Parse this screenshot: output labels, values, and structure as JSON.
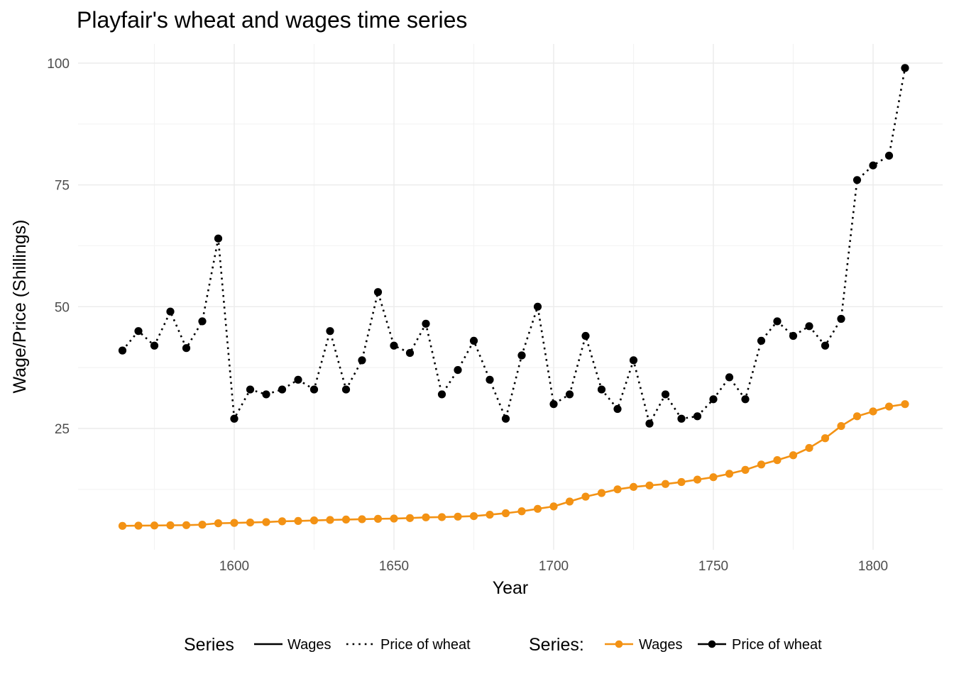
{
  "chart_data": {
    "type": "line",
    "title": "Playfair's wheat and wages time series",
    "xlabel": "Year",
    "ylabel": "Wage/Price (Shillings)",
    "xlim": [
      1565,
      1810
    ],
    "ylim": [
      0,
      100
    ],
    "x_ticks": [
      1600,
      1650,
      1700,
      1750,
      1800
    ],
    "y_ticks": [
      25,
      50,
      75,
      100
    ],
    "grid": true,
    "legend_position": "bottom",
    "x": [
      1565,
      1570,
      1575,
      1580,
      1585,
      1590,
      1595,
      1600,
      1605,
      1610,
      1615,
      1620,
      1625,
      1630,
      1635,
      1640,
      1645,
      1650,
      1655,
      1660,
      1665,
      1670,
      1675,
      1680,
      1685,
      1690,
      1695,
      1700,
      1705,
      1710,
      1715,
      1720,
      1725,
      1730,
      1735,
      1740,
      1745,
      1750,
      1755,
      1760,
      1765,
      1770,
      1775,
      1780,
      1785,
      1790,
      1795,
      1800,
      1805,
      1810
    ],
    "series": [
      {
        "name": "Price of wheat",
        "color": "#000000",
        "line_style": "dotted",
        "values": [
          41,
          45,
          42,
          49,
          41.5,
          47,
          64,
          27,
          33,
          32,
          33,
          35,
          33,
          45,
          33,
          39,
          53,
          42,
          40.5,
          46.5,
          32,
          37,
          43,
          35,
          27,
          40,
          50,
          30,
          32,
          44,
          33,
          29,
          39,
          26,
          32,
          27,
          27.5,
          31,
          35.5,
          31,
          43,
          47,
          44,
          46,
          42,
          47.5,
          76,
          79,
          81,
          99
        ]
      },
      {
        "name": "Wages",
        "color": "#f39214",
        "line_style": "solid",
        "values": [
          5,
          5.05,
          5.08,
          5.12,
          5.15,
          5.25,
          5.54,
          5.61,
          5.69,
          5.78,
          5.94,
          6.01,
          6.12,
          6.22,
          6.3,
          6.37,
          6.45,
          6.5,
          6.6,
          6.75,
          6.8,
          6.9,
          7,
          7.3,
          7.6,
          8,
          8.5,
          9,
          10,
          11,
          11.75,
          12.5,
          13,
          13.3,
          13.6,
          14,
          14.5,
          15,
          15.7,
          16.5,
          17.6,
          18.5,
          19.5,
          21,
          23,
          25.5,
          27.5,
          28.5,
          29.5,
          30
        ]
      }
    ],
    "legends": [
      {
        "title": "Series",
        "kind": "linetype",
        "entries": [
          {
            "label": "Wages",
            "line_style": "solid"
          },
          {
            "label": "Price of wheat",
            "line_style": "dotted"
          }
        ]
      },
      {
        "title": "Series:",
        "kind": "colour",
        "entries": [
          {
            "label": "Wages",
            "color": "#f39214"
          },
          {
            "label": "Price of wheat",
            "color": "#000000"
          }
        ]
      }
    ]
  }
}
